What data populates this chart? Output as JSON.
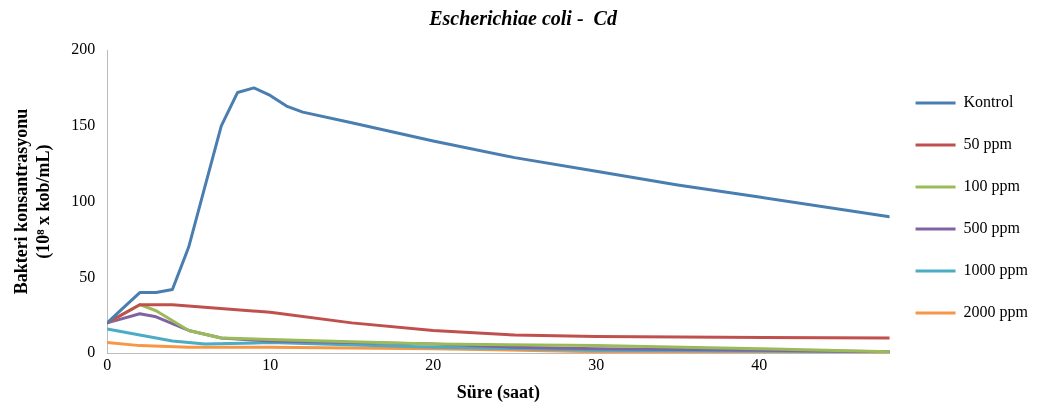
{
  "chart_data": {
    "type": "line",
    "title": "Escherichiae coli -  Cd",
    "xlabel": "Süre (saat)",
    "ylabel": "Bakteri konsantrasyonu (10⁸ x kob/mL)",
    "xlim": [
      0,
      48
    ],
    "xticks": [
      0,
      10,
      20,
      30,
      40
    ],
    "ylim": [
      0,
      200
    ],
    "yticks": [
      0,
      50,
      100,
      150,
      200
    ],
    "grid": false,
    "legend": "right",
    "marker": "none",
    "line_style": "solid",
    "series": [
      {
        "name": "Kontrol",
        "color": "#4a7eb0",
        "x": [
          0,
          1,
          2,
          3,
          4,
          5,
          6,
          7,
          8,
          9,
          10,
          11,
          12,
          15,
          20,
          25,
          30,
          35,
          40,
          48
        ],
        "values": [
          20,
          30,
          40,
          40,
          42,
          70,
          110,
          150,
          172,
          175,
          170,
          163,
          159,
          152,
          140,
          129,
          120,
          111,
          103,
          90
        ]
      },
      {
        "name": "50 ppm",
        "color": "#c0504d",
        "x": [
          0,
          2,
          4,
          10,
          15,
          20,
          25,
          30,
          48
        ],
        "values": [
          20,
          32,
          32,
          27,
          20,
          15,
          12,
          11,
          10
        ]
      },
      {
        "name": "100 ppm",
        "color": "#9bbb59",
        "x": [
          0,
          2,
          3,
          5,
          7,
          10,
          20,
          30,
          40,
          48
        ],
        "values": [
          20,
          32,
          28,
          15,
          10,
          9,
          6,
          5,
          3,
          1
        ]
      },
      {
        "name": "500 ppm",
        "color": "#8064a2",
        "x": [
          0,
          2,
          3,
          5,
          7,
          10,
          20,
          25,
          30,
          40,
          48
        ],
        "values": [
          20,
          26,
          24,
          15,
          10,
          8,
          6,
          4,
          3,
          2,
          1
        ]
      },
      {
        "name": "1000 ppm",
        "color": "#4bacc6",
        "x": [
          0,
          2,
          4,
          6,
          10,
          20,
          30,
          48
        ],
        "values": [
          16,
          12,
          8,
          6,
          7,
          4,
          2,
          1
        ]
      },
      {
        "name": "2000 ppm",
        "color": "#f79646",
        "x": [
          0,
          2,
          5,
          10,
          20,
          30,
          48
        ],
        "values": [
          7,
          5,
          4,
          4,
          3,
          1,
          0.5
        ]
      }
    ]
  }
}
